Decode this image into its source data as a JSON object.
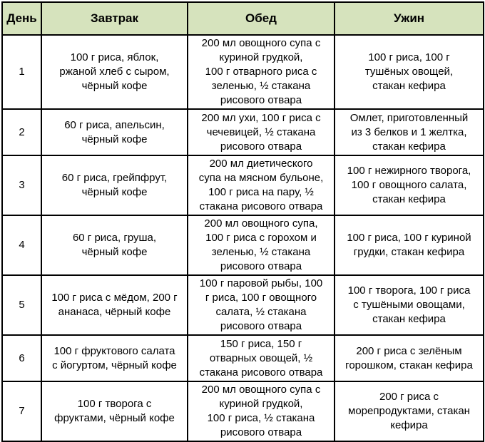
{
  "colors": {
    "header_bg": "#d6e3bd",
    "border": "#000000",
    "text": "#000000",
    "row_bg": "#ffffff"
  },
  "table": {
    "columns": [
      {
        "key": "day",
        "label": "День"
      },
      {
        "key": "breakfast",
        "label": "Завтрак"
      },
      {
        "key": "lunch",
        "label": "Обед"
      },
      {
        "key": "dinner",
        "label": "Ужин"
      }
    ],
    "rows": [
      {
        "day": "1",
        "breakfast": "100 г риса, яблок,\nржаной хлеб с сыром,\nчёрный кофе",
        "lunch": "200 мл овощного супа с\nкуриной грудкой,\n100 г отварного риса с\nзеленью, ½ стакана\nрисового отвара",
        "dinner": "100 г риса, 100 г\nтушёных овощей,\nстакан кефира"
      },
      {
        "day": "2",
        "breakfast": "60 г риса, апельсин,\nчёрный кофе",
        "lunch": "200 мл ухи, 100 г риса с\nчечевицей, ½ стакана\nрисового отвара",
        "dinner": "Омлет, приготовленный\nиз 3 белков и 1 желтка,\nстакан кефира"
      },
      {
        "day": "3",
        "breakfast": "60 г риса, грейпфрут,\nчёрный кофе",
        "lunch": "200 мл диетического\nсупа на мясном бульоне,\n100 г риса на пару, ½\nстакана рисового отвара",
        "dinner": "100 г нежирного творога,\n100 г овощного салата,\nстакан кефира"
      },
      {
        "day": "4",
        "breakfast": "60 г риса, груша,\nчёрный кофе",
        "lunch": "200 мл овощного супа,\n100 г риса с горохом и\nзеленью, ½ стакана\nрисового отвара",
        "dinner": "100 г риса, 100 г куриной\nгрудки, стакан кефира"
      },
      {
        "day": "5",
        "breakfast": "100 г риса с мёдом, 200 г\nананаса, чёрный кофе",
        "lunch": "100 г паровой рыбы, 100\nг риса, 100 г овощного\nсалата, ½ стакана\nрисового отвара",
        "dinner": "100 г творога, 100 г риса\nс тушёными овощами,\nстакан кефира"
      },
      {
        "day": "6",
        "breakfast": "100 г фруктового салата\nс йогуртом, чёрный кофе",
        "lunch": "150 г риса, 150 г\nотварных овощей, ½\nстакана рисового отвара",
        "dinner": "200 г риса с зелёным\nгорошком, стакан кефира"
      },
      {
        "day": "7",
        "breakfast": "100 г творога с\nфруктами, чёрный кофе",
        "lunch": "200 мл овощного супа с\nкуриной грудкой,\n100 г риса, ½ стакана\nрисового отвара",
        "dinner": "200 г риса с\nморепродуктами, стакан\nкефира"
      }
    ]
  }
}
